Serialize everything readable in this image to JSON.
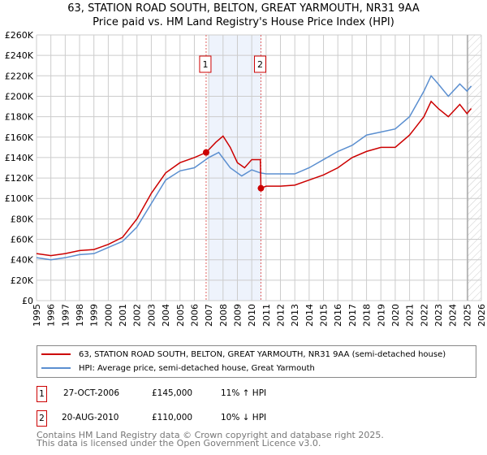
{
  "chart_data": {
    "type": "line",
    "title": "63, STATION ROAD SOUTH, BELTON, GREAT YARMOUTH, NR31 9AA",
    "subtitle": "Price paid vs. HM Land Registry's House Price Index (HPI)",
    "xlim": [
      1995,
      2026
    ],
    "ylim": [
      0,
      260000
    ],
    "x_ticks": [
      "1995",
      "1996",
      "1997",
      "1998",
      "1999",
      "2000",
      "2001",
      "2002",
      "2003",
      "2004",
      "2005",
      "2006",
      "2007",
      "2008",
      "2009",
      "2010",
      "2011",
      "2012",
      "2013",
      "2014",
      "2015",
      "2016",
      "2017",
      "2018",
      "2019",
      "2020",
      "2021",
      "2022",
      "2023",
      "2024",
      "2025",
      "2026"
    ],
    "y_ticks": [
      "£0",
      "£20K",
      "£40K",
      "£60K",
      "£80K",
      "£100K",
      "£120K",
      "£140K",
      "£160K",
      "£180K",
      "£200K",
      "£220K",
      "£240K",
      "£260K"
    ],
    "grid": true,
    "series": [
      {
        "name": "63, STATION ROAD SOUTH, BELTON, GREAT YARMOUTH, NR31 9AA (semi-detached house)",
        "color": "#cc0000",
        "x": [
          1995,
          1996,
          1997,
          1998,
          1999,
          2000,
          2001,
          2002,
          2003,
          2004,
          2005,
          2006,
          2006.82,
          2007.5,
          2008,
          2008.5,
          2009,
          2009.5,
          2010,
          2010.6,
          2010.64,
          2011,
          2012,
          2013,
          2014,
          2015,
          2016,
          2017,
          2018,
          2019,
          2020,
          2021,
          2022,
          2022.5,
          2023,
          2023.7,
          2024.5,
          2025,
          2025.3
        ],
        "y": [
          46000,
          44000,
          46000,
          49000,
          50000,
          55000,
          62000,
          80000,
          105000,
          125000,
          135000,
          140000,
          145000,
          155000,
          161000,
          150000,
          135000,
          130000,
          138000,
          138000,
          110000,
          112000,
          112000,
          113000,
          118000,
          123000,
          130000,
          140000,
          146000,
          150000,
          150000,
          162000,
          180000,
          195000,
          188000,
          180000,
          192000,
          183000,
          188000
        ]
      },
      {
        "name": "HPI: Average price, semi-detached house, Great Yarmouth",
        "color": "#5b8fd0",
        "x": [
          1995,
          1996,
          1997,
          1998,
          1999,
          2000,
          2001,
          2002,
          2003,
          2004,
          2005,
          2006,
          2007,
          2007.7,
          2008.5,
          2009.3,
          2010,
          2010.6,
          2011,
          2012,
          2013,
          2014,
          2015,
          2016,
          2017,
          2018,
          2019,
          2020,
          2021,
          2022,
          2022.5,
          2023,
          2023.7,
          2024.5,
          2025,
          2025.3
        ],
        "y": [
          42000,
          40000,
          42000,
          45000,
          46000,
          52000,
          58000,
          72000,
          95000,
          118000,
          127000,
          130000,
          140000,
          145000,
          130000,
          122000,
          128000,
          125000,
          124000,
          124000,
          124000,
          130000,
          138000,
          146000,
          152000,
          162000,
          165000,
          168000,
          180000,
          205000,
          220000,
          212000,
          200000,
          212000,
          205000,
          210000
        ]
      }
    ],
    "sales": [
      {
        "label": "1",
        "date": "27-OCT-2006",
        "x": 2006.82,
        "price": "£145,000",
        "value": 145000,
        "hpi": "11% ↑ HPI"
      },
      {
        "label": "2",
        "date": "20-AUG-2010",
        "x": 2010.64,
        "price": "£110,000",
        "value": 110000,
        "hpi": "10% ↓ HPI"
      }
    ],
    "shaded_range": [
      2007,
      2010.64
    ],
    "forecast_from": 2025.05
  },
  "footer": {
    "line1": "Contains HM Land Registry data © Crown copyright and database right 2025.",
    "line2": "This data is licensed under the Open Government Licence v3.0."
  }
}
